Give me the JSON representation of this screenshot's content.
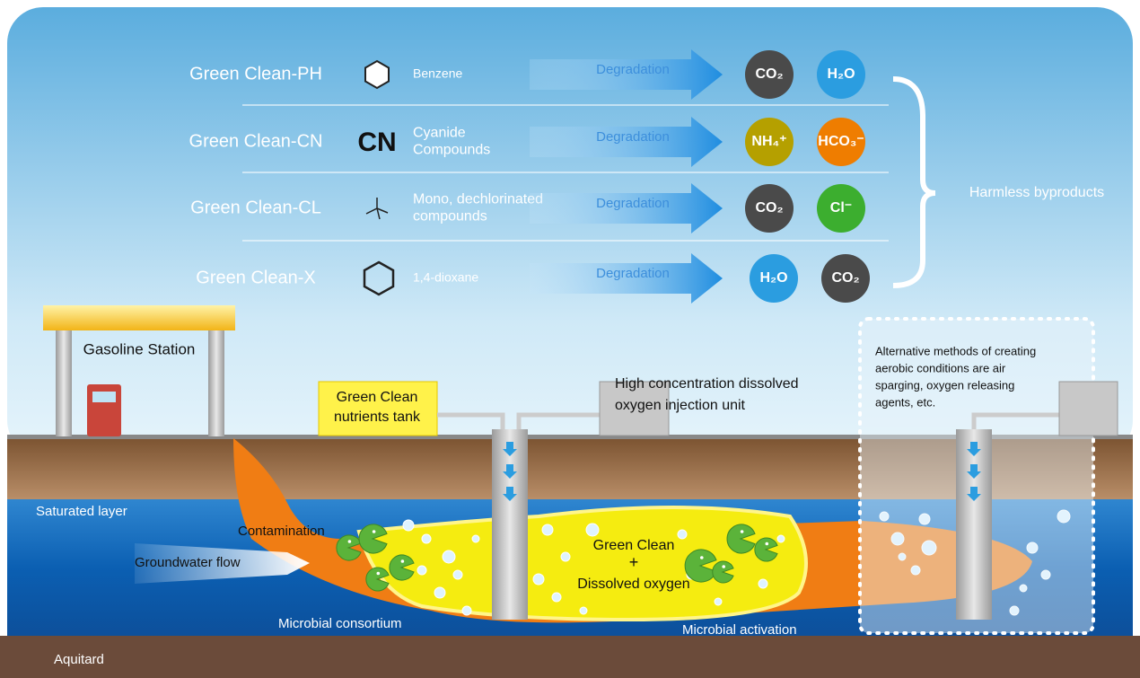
{
  "header": {
    "products": [
      {
        "name": "Green Clean-PH",
        "compound": [
          "Benzene"
        ],
        "arrow": "Degradation",
        "outputs": [
          "CO₂",
          "H₂O"
        ]
      },
      {
        "name": "Green Clean-CN",
        "formula": "CN",
        "compound": [
          "Cyanide",
          "Compounds"
        ],
        "arrow": "Degradation",
        "outputs": [
          "NH₄⁺",
          "HCO₃⁻"
        ]
      },
      {
        "name": "Green Clean-CL",
        "compound": [
          "Mono, dechlorinated",
          "compounds"
        ],
        "arrow": "Degradation",
        "outputs": [
          "CO₂",
          "Cl⁻"
        ]
      },
      {
        "name": "Green Clean-X",
        "compound": [
          "1,4-dioxane"
        ],
        "arrow": "Degradation",
        "outputs": [
          "H₂O",
          "CO₂"
        ]
      }
    ],
    "summary": "Harmless byproducts"
  },
  "scene": {
    "station": "Gasoline Station",
    "tank": [
      "Green Clean",
      "nutrients tank"
    ],
    "injection": [
      "High concentration dissolved",
      "oxygen injection unit"
    ],
    "alternative": [
      "Alternative methods of creating",
      "aerobic conditions are air",
      "sparging, oxygen releasing",
      "agents, etc."
    ],
    "saturated": "Saturated layer",
    "contamination": "Contamination",
    "flow": "Groundwater flow",
    "mix": [
      "Green Clean",
      "+",
      "Dissolved oxygen"
    ],
    "consortium": "Microbial consortium",
    "activation": "Microbial activation",
    "aquitard": "Aquitard"
  }
}
